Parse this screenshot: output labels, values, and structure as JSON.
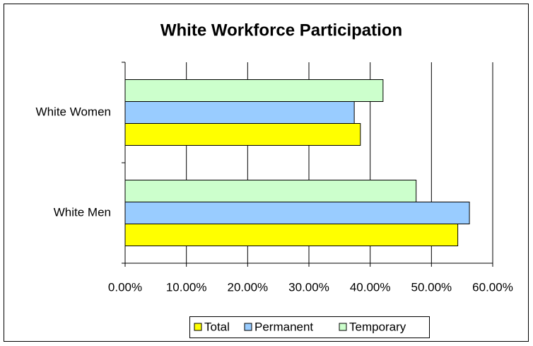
{
  "chart_data": {
    "type": "bar",
    "orientation": "horizontal",
    "title": "White Workforce Participation",
    "categories": [
      "White Men",
      "White Women"
    ],
    "series": [
      {
        "name": "Total",
        "color": "#ffff00",
        "values": [
          54.3,
          38.4
        ]
      },
      {
        "name": "Permanent",
        "color": "#99ccff",
        "values": [
          56.2,
          37.4
        ]
      },
      {
        "name": "Temporary",
        "color": "#ccffcc",
        "values": [
          47.5,
          42.1
        ]
      }
    ],
    "xlim": [
      0,
      60
    ],
    "xticks": [
      {
        "value": 0,
        "label": "0.00%"
      },
      {
        "value": 10,
        "label": "10.00%"
      },
      {
        "value": 20,
        "label": "20.00%"
      },
      {
        "value": 30,
        "label": "30.00%"
      },
      {
        "value": 40,
        "label": "40.00%"
      },
      {
        "value": 50,
        "label": "50.00%"
      },
      {
        "value": 60,
        "label": "60.00%"
      }
    ],
    "grid": true,
    "legend": "bottom"
  }
}
